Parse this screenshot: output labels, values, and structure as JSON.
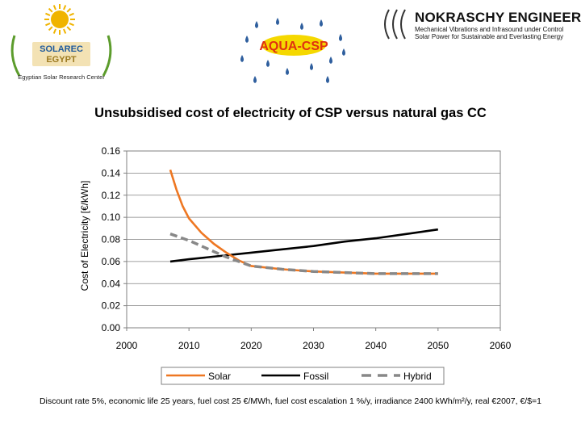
{
  "logos": {
    "solarec": {
      "name": "SOLAREC",
      "sub": "EGYPT",
      "tagline": "Egyptian Solar Research Center",
      "colors": {
        "sun": "#f0b400",
        "green": "#5c9c2c",
        "bg": "#f3e2b4"
      }
    },
    "aqua": {
      "text": "AQUA-CSP",
      "colors": {
        "drop": "#2f5f9e",
        "text": "#e03010",
        "bg": "#f5d800"
      }
    },
    "nokraschy": {
      "title": "NOKRASCHY ENGINEERING",
      "line1": "Mechanical Vibrations and Infrasound under Control",
      "line2": "Solar Power for Sustainable and Everlasting Energy"
    }
  },
  "title": "Unsubsidised cost of electricity of CSP versus natural gas CC",
  "footnote": "Discount rate 5%, economic life 25 years, fuel cost 25 €/MWh, fuel cost escalation 1 %/y, irradiance 2400 kWh/m²/y, real €2007, €/$=1",
  "chart_data": {
    "type": "line",
    "ylabel": "Cost of Electricity [€/kWh]",
    "xlabel": "",
    "xlim": [
      2000,
      2060
    ],
    "ylim": [
      0,
      0.16
    ],
    "x_ticks": [
      "2000",
      "2010",
      "2020",
      "2030",
      "2040",
      "2050",
      "2060"
    ],
    "y_ticks": [
      "0.00",
      "0.02",
      "0.04",
      "0.06",
      "0.08",
      "0.10",
      "0.12",
      "0.14",
      "0.16"
    ],
    "grid": "horizontal",
    "legend_position": "bottom",
    "series": [
      {
        "name": "Solar",
        "color": "#ee7722",
        "style": "solid",
        "x": [
          2007,
          2008,
          2009,
          2010,
          2012,
          2014,
          2016,
          2018,
          2020,
          2025,
          2030,
          2035,
          2040,
          2045,
          2050
        ],
        "y": [
          0.143,
          0.125,
          0.11,
          0.099,
          0.086,
          0.076,
          0.068,
          0.061,
          0.056,
          0.053,
          0.051,
          0.05,
          0.049,
          0.049,
          0.049
        ]
      },
      {
        "name": "Fossil",
        "color": "#000000",
        "style": "solid",
        "x": [
          2007,
          2010,
          2015,
          2020,
          2025,
          2030,
          2035,
          2040,
          2045,
          2050
        ],
        "y": [
          0.06,
          0.062,
          0.065,
          0.068,
          0.071,
          0.074,
          0.078,
          0.081,
          0.085,
          0.089
        ]
      },
      {
        "name": "Hybrid",
        "color": "#888888",
        "style": "dashed",
        "x": [
          2007,
          2010,
          2012,
          2014,
          2016,
          2018,
          2020,
          2025,
          2030,
          2035,
          2040,
          2045,
          2050
        ],
        "y": [
          0.085,
          0.079,
          0.074,
          0.069,
          0.064,
          0.06,
          0.056,
          0.053,
          0.051,
          0.05,
          0.049,
          0.049,
          0.049
        ]
      }
    ]
  }
}
